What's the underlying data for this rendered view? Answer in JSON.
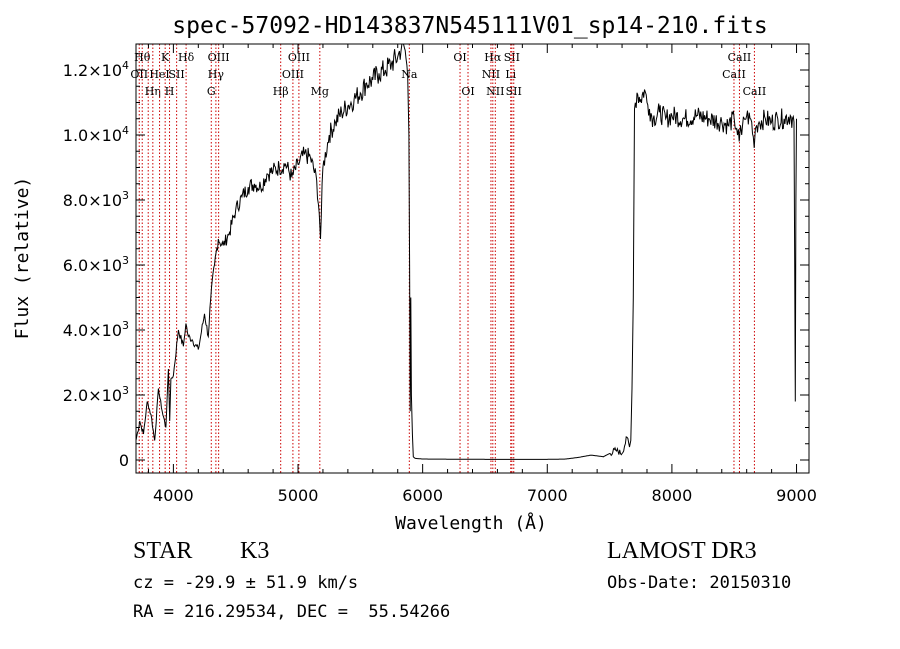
{
  "chart_data": {
    "type": "line",
    "title": "spec-57092-HD143837N545111V01_sp14-210.fits",
    "xlabel": "Wavelength (Å)",
    "ylabel": "Flux (relative)",
    "xlim": [
      3700,
      9100
    ],
    "ylim": [
      -400,
      12800
    ],
    "xticks": [
      4000,
      5000,
      6000,
      7000,
      8000,
      9000
    ],
    "xtick_labels": [
      "4000",
      "5000",
      "6000",
      "7000",
      "8000",
      "9000"
    ],
    "yticks": [
      0,
      2000,
      4000,
      6000,
      8000,
      10000,
      12000
    ],
    "ytick_labels": [
      {
        "base": "0",
        "exp": ""
      },
      {
        "base": "2.0×10",
        "exp": "3"
      },
      {
        "base": "4.0×10",
        "exp": "3"
      },
      {
        "base": "6.0×10",
        "exp": "3"
      },
      {
        "base": "8.0×10",
        "exp": "3"
      },
      {
        "base": "1.0×10",
        "exp": "4"
      },
      {
        "base": "1.2×10",
        "exp": "4"
      }
    ],
    "grid": false,
    "series": [
      {
        "color": "#000000",
        "x": [
          3700,
          3730,
          3760,
          3790,
          3820,
          3850,
          3880,
          3910,
          3940,
          3960,
          3970,
          3980,
          4000,
          4040,
          4080,
          4100,
          4120,
          4150,
          4200,
          4250,
          4280,
          4300,
          4330,
          4360,
          4400,
          4450,
          4500,
          4550,
          4600,
          4650,
          4700,
          4750,
          4800,
          4850,
          4900,
          4950,
          5000,
          5050,
          5100,
          5150,
          5170,
          5180,
          5200,
          5250,
          5300,
          5350,
          5400,
          5450,
          5500,
          5550,
          5600,
          5650,
          5700,
          5750,
          5800,
          5840,
          5860,
          5880,
          5890,
          5895,
          5900,
          5905,
          5910,
          5918,
          5925,
          5940,
          6000,
          6500,
          7000,
          7150,
          7250,
          7350,
          7450,
          7550,
          7600,
          7640,
          7660,
          7670,
          7680,
          7690,
          7700,
          7720,
          7750,
          7780,
          7800,
          7820,
          7850,
          7900,
          7950,
          8000,
          8100,
          8200,
          8300,
          8400,
          8450,
          8500,
          8520,
          8540,
          8550,
          8560,
          8580,
          8600,
          8640,
          8660,
          8670,
          8680,
          8700,
          8750,
          8800,
          8850,
          8900,
          8950,
          8980,
          8985,
          8990,
          8995,
          9000
        ],
        "y": [
          600,
          1200,
          800,
          1800,
          1400,
          600,
          2200,
          1500,
          1000,
          2800,
          1200,
          2500,
          2600,
          4000,
          3500,
          4200,
          3800,
          3700,
          3400,
          4500,
          3800,
          5000,
          6000,
          6800,
          6600,
          7000,
          7700,
          8100,
          8400,
          8500,
          8400,
          8800,
          8900,
          9000,
          9100,
          8700,
          9100,
          9400,
          9300,
          8600,
          7600,
          6800,
          9000,
          10000,
          10400,
          10700,
          10900,
          11100,
          11300,
          11600,
          11700,
          11900,
          12000,
          12200,
          12400,
          12800,
          12600,
          11800,
          10000,
          6000,
          1500,
          5000,
          2000,
          800,
          100,
          50,
          30,
          20,
          20,
          30,
          80,
          150,
          100,
          300,
          200,
          700,
          400,
          600,
          2200,
          5000,
          10800,
          11300,
          11100,
          11400,
          11000,
          10800,
          10500,
          10700,
          10500,
          10600,
          10500,
          10600,
          10500,
          10400,
          10300,
          10500,
          10200,
          9800,
          10300,
          10000,
          10500,
          10600,
          10400,
          9600,
          10200,
          10300,
          10400,
          10500,
          10400,
          10500,
          10500,
          10600,
          10400,
          6000,
          1800,
          8000,
          10500
        ]
      }
    ],
    "line_color": "#cc0000",
    "lines": [
      {
        "x": 3726,
        "label": "OII",
        "row": 1
      },
      {
        "x": 3750,
        "label": "Hθ",
        "row": 0
      },
      {
        "x": 3798,
        "label": "",
        "row": 0
      },
      {
        "x": 3835,
        "label": "Hη",
        "row": 2
      },
      {
        "x": 3889,
        "label": "HeI",
        "row": 1
      },
      {
        "x": 3934,
        "label": "K",
        "row": 0
      },
      {
        "x": 3969,
        "label": "H",
        "row": 2
      },
      {
        "x": 4026,
        "label": "SII",
        "row": 1
      },
      {
        "x": 4102,
        "label": "Hδ",
        "row": 0
      },
      {
        "x": 4304,
        "label": "G",
        "row": 2
      },
      {
        "x": 4341,
        "label": "Hγ",
        "row": 1
      },
      {
        "x": 4363,
        "label": "OIII",
        "row": 0
      },
      {
        "x": 4861,
        "label": "Hβ",
        "row": 2
      },
      {
        "x": 4959,
        "label": "OIII",
        "row": 1
      },
      {
        "x": 5007,
        "label": "OIII",
        "row": 0
      },
      {
        "x": 5175,
        "label": "Mg",
        "row": 2
      },
      {
        "x": 5893,
        "label": "Na",
        "row": 1
      },
      {
        "x": 6300,
        "label": "OI",
        "row": 0
      },
      {
        "x": 6364,
        "label": "OI",
        "row": 2
      },
      {
        "x": 6548,
        "label": "NII",
        "row": 1
      },
      {
        "x": 6563,
        "label": "Hα",
        "row": 0
      },
      {
        "x": 6583,
        "label": "NII",
        "row": 2
      },
      {
        "x": 6707,
        "label": "Li",
        "row": 1
      },
      {
        "x": 6716,
        "label": "SII",
        "row": 0
      },
      {
        "x": 6731,
        "label": "SII",
        "row": 2
      },
      {
        "x": 8498,
        "label": "CaII",
        "row": 1
      },
      {
        "x": 8542,
        "label": "CaII",
        "row": 0
      },
      {
        "x": 8662,
        "label": "CaII",
        "row": 2
      }
    ]
  },
  "footer": {
    "class": "STAR",
    "subclass": "K3",
    "survey": "LAMOST DR3",
    "cz": "cz = -29.9 ± 51.9 km/s",
    "obsdate": "Obs-Date: 20150310",
    "radec": "RA = 216.29534, DEC =  55.54266"
  }
}
